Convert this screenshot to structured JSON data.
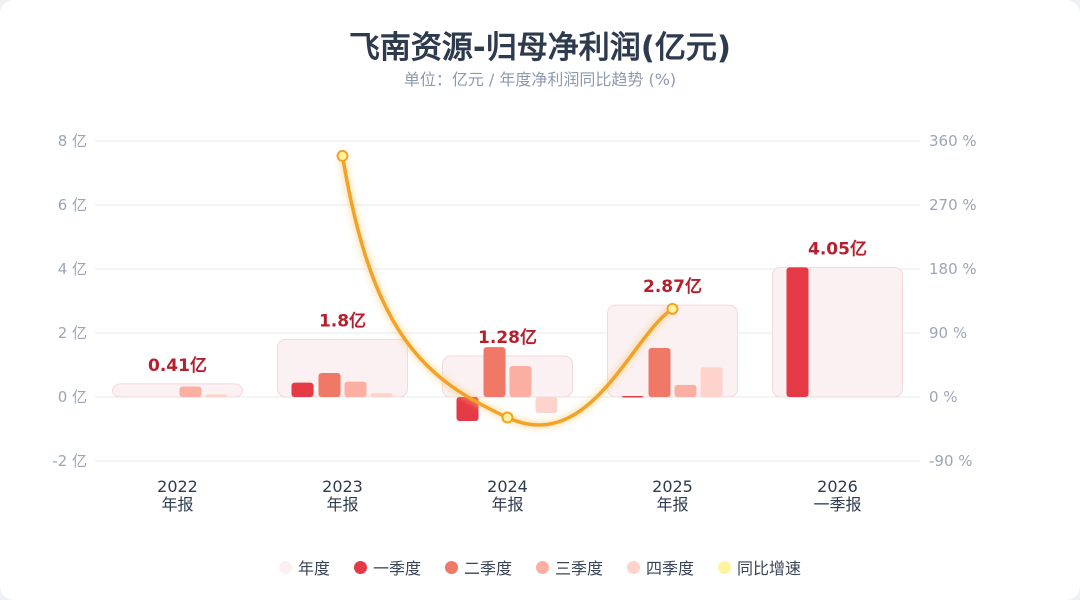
{
  "chart_data": {
    "type": "bar",
    "title": "飞南资源-归母净利润(亿元)",
    "subtitle": "单位：亿元 / 年度净利润同比趋势 (%)",
    "categories": [
      [
        "2022",
        "年报"
      ],
      [
        "2023",
        "年报"
      ],
      [
        "2024",
        "年报"
      ],
      [
        "2025",
        "年报"
      ],
      [
        "2026",
        "一季报"
      ]
    ],
    "annual": [
      0.41,
      1.8,
      1.28,
      2.87,
      4.05
    ],
    "annual_labels": [
      "0.41亿",
      "1.8亿",
      "1.28亿",
      "2.87亿",
      "4.05亿"
    ],
    "series": [
      {
        "name": "一季度",
        "color": "#e63946",
        "values": [
          0,
          0.45,
          -0.75,
          0.03,
          4.05
        ]
      },
      {
        "name": "二季度",
        "color": "#f07866",
        "values": [
          0,
          0.75,
          1.56,
          1.53,
          null
        ]
      },
      {
        "name": "三季度",
        "color": "#fbaea2",
        "values": [
          0.33,
          0.48,
          0.97,
          0.38,
          null
        ]
      },
      {
        "name": "四季度",
        "color": "#fdd3cc",
        "values": [
          0.08,
          0.12,
          -0.5,
          0.93,
          null
        ]
      }
    ],
    "yoy": {
      "name": "同比增速",
      "color": "#f2a227",
      "values": [
        null,
        339,
        -28.9,
        124,
        null
      ]
    },
    "y_left": {
      "ticks": [
        -2,
        0,
        2,
        4,
        6,
        8
      ],
      "labels": [
        "-2 亿",
        "0 亿",
        "2 亿",
        "4 亿",
        "6 亿",
        "8 亿"
      ],
      "lim": [
        -2,
        8
      ]
    },
    "y_right": {
      "ticks": [
        -90,
        0,
        90,
        180,
        270,
        360
      ],
      "labels": [
        "-90 %",
        "0 %",
        "90 %",
        "180 %",
        "270 %",
        "360 %"
      ],
      "lim": [
        -90,
        360
      ]
    },
    "legend": [
      "年度",
      "一季度",
      "二季度",
      "三季度",
      "四季度",
      "同比增速"
    ],
    "legend_colors": [
      "#fbeff1",
      "#e63946",
      "#f07866",
      "#fbaea2",
      "#fdd3cc",
      "#fff3a0"
    ],
    "legend_position": "bottom",
    "grid": true
  }
}
